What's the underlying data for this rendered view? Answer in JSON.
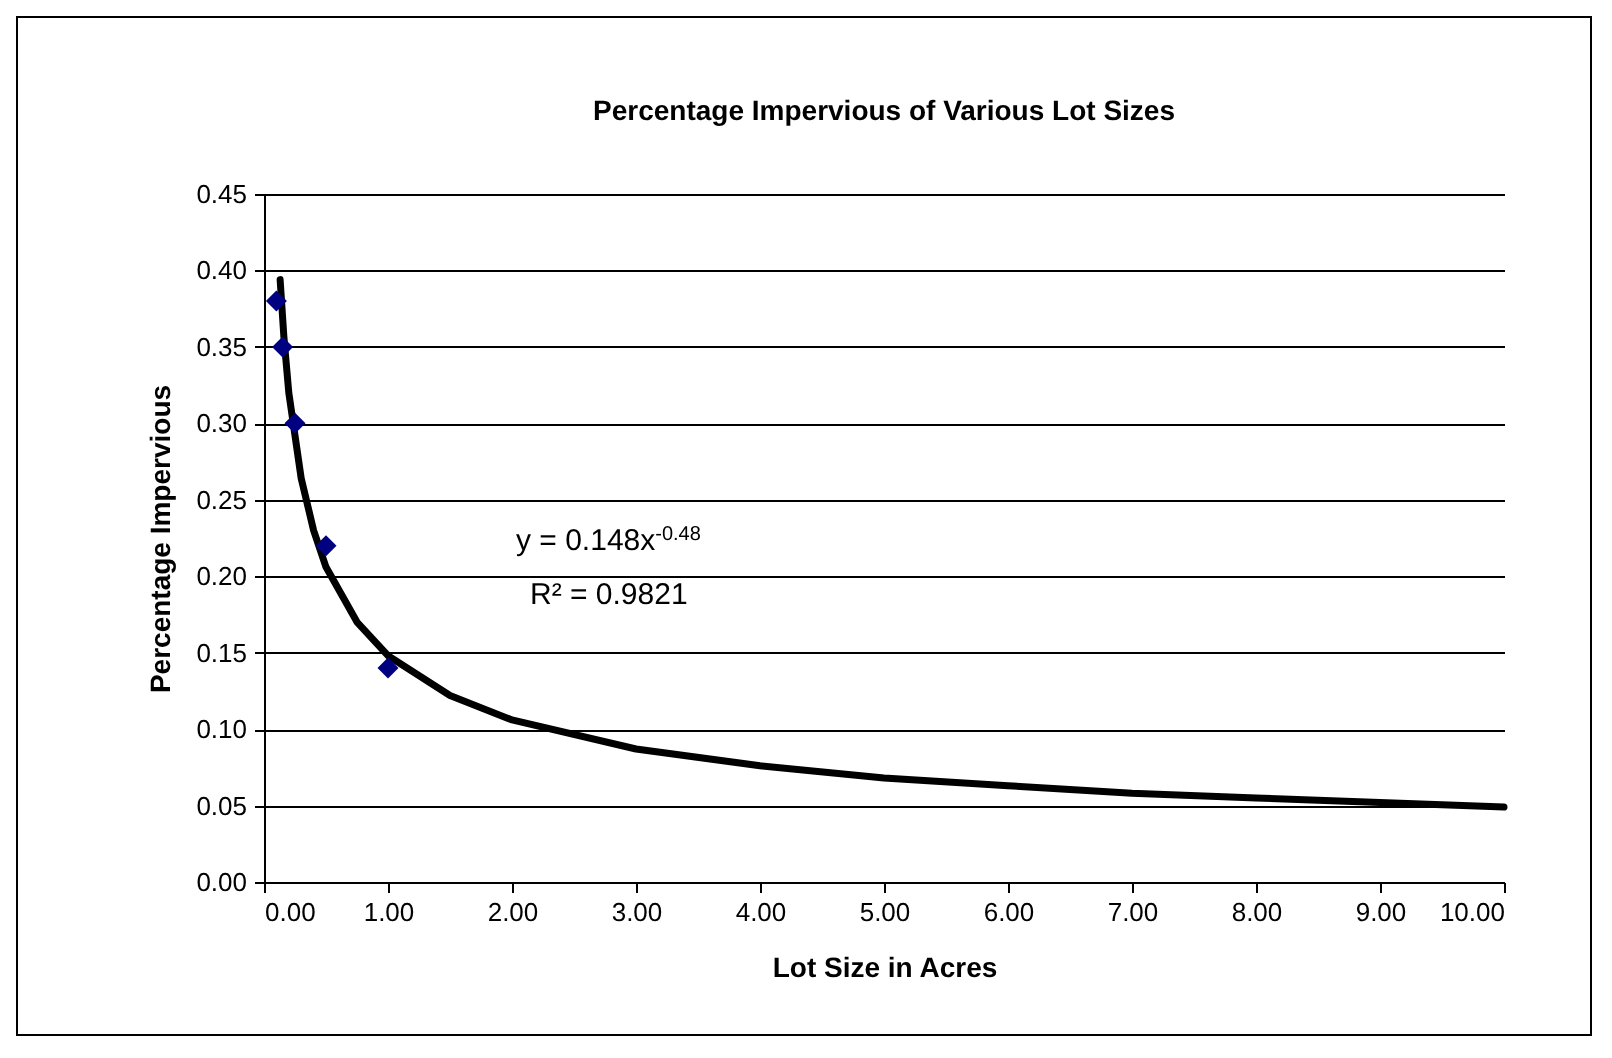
{
  "chart_data": {
    "type": "scatter",
    "title": "Percentage Impervious of Various Lot Sizes",
    "xlabel": "Lot Size in Acres",
    "ylabel": "Percentage Impervious",
    "series": [
      {
        "type": "scatter",
        "color": "#000080",
        "x": [
          0.1,
          0.15,
          0.25,
          0.5,
          1.0
        ],
        "values": [
          0.38,
          0.35,
          0.3,
          0.22,
          0.14
        ],
        "marker": "diamond"
      },
      {
        "type": "line",
        "color": "#000000",
        "x": [
          0.13,
          0.16,
          0.2,
          0.3,
          0.4,
          0.5,
          0.75,
          1,
          1.5,
          2,
          3,
          4,
          5,
          6,
          7,
          8,
          9,
          10
        ],
        "values": [
          0.394,
          0.357,
          0.32,
          0.264,
          0.23,
          0.206,
          0.17,
          0.148,
          0.122,
          0.106,
          0.087,
          0.076,
          0.068,
          0.063,
          0.058,
          0.055,
          0.052,
          0.049
        ],
        "marker": "none",
        "line_style": "solid"
      }
    ],
    "annotations": [
      "y = 0.148x$^{-0.48}$",
      "R² = 0.9821"
    ],
    "xlim": [
      0,
      10
    ],
    "xticks": [
      {
        "value": 0,
        "label": "0.00"
      },
      {
        "value": 1,
        "label": "1.00"
      },
      {
        "value": 2,
        "label": "2.00"
      },
      {
        "value": 3,
        "label": "3.00"
      },
      {
        "value": 4,
        "label": "4.00"
      },
      {
        "value": 5,
        "label": "5.00"
      },
      {
        "value": 6,
        "label": "6.00"
      },
      {
        "value": 7,
        "label": "7.00"
      },
      {
        "value": 8,
        "label": "8.00"
      },
      {
        "value": 9,
        "label": "9.00"
      },
      {
        "value": 10,
        "label": "10.00"
      }
    ],
    "ylim": [
      0,
      0.45
    ],
    "yticks": [
      {
        "value": 0,
        "label": "0.00"
      },
      {
        "value": 0.05,
        "label": "0.05"
      },
      {
        "value": 0.1,
        "label": "0.10"
      },
      {
        "value": 0.15,
        "label": "0.15"
      },
      {
        "value": 0.2,
        "label": "0.20"
      },
      {
        "value": 0.25,
        "label": "0.25"
      },
      {
        "value": 0.3,
        "label": "0.30"
      },
      {
        "value": 0.35,
        "label": "0.35"
      },
      {
        "value": 0.4,
        "label": "0.40"
      },
      {
        "value": 0.45,
        "label": "0.45"
      }
    ],
    "grid": "y",
    "legend": false
  }
}
